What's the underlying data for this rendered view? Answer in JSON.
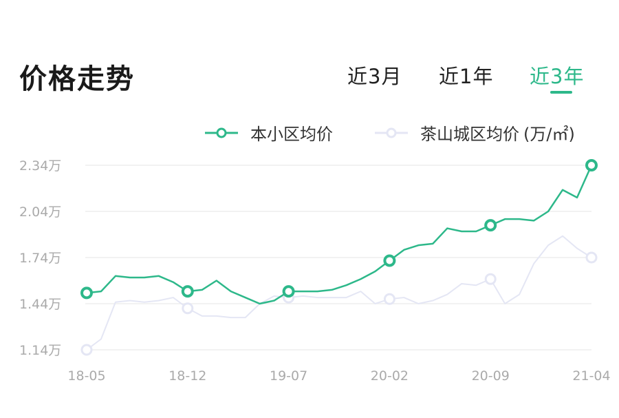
{
  "header": {
    "title": "价格走势"
  },
  "tabs": [
    {
      "label": "近3月",
      "active": false
    },
    {
      "label": "近1年",
      "active": false
    },
    {
      "label": "近3年",
      "active": true
    }
  ],
  "colors": {
    "accent": "#2db88a",
    "secondary": "#e4e6f4",
    "grid": "#eeeeee",
    "axis_text": "#aaaaaa"
  },
  "chart_data": {
    "type": "line",
    "unit": "(万/㎡)",
    "y_ticks": [
      "2.34万",
      "2.04万",
      "1.74万",
      "1.44万",
      "1.14万"
    ],
    "y_tick_values": [
      2.34,
      2.04,
      1.74,
      1.44,
      1.14
    ],
    "ylim": [
      1.14,
      2.34
    ],
    "x_ticks": [
      "18-05",
      "18-12",
      "19-07",
      "20-02",
      "20-09",
      "21-04"
    ],
    "x_tick_indices": [
      0,
      7,
      14,
      21,
      28,
      35
    ],
    "grid": true,
    "legend": "top-right",
    "series": [
      {
        "name": "本小区均价",
        "color": "#2db88a",
        "values": [
          1.51,
          1.52,
          1.62,
          1.61,
          1.61,
          1.62,
          1.58,
          1.52,
          1.53,
          1.59,
          1.52,
          1.48,
          1.44,
          1.46,
          1.52,
          1.52,
          1.52,
          1.53,
          1.56,
          1.6,
          1.65,
          1.72,
          1.79,
          1.82,
          1.83,
          1.93,
          1.91,
          1.91,
          1.95,
          1.99,
          1.99,
          1.98,
          2.04,
          2.18,
          2.13,
          2.34
        ]
      },
      {
        "name": "茶山城区均价",
        "color": "#e4e6f4",
        "values": [
          1.14,
          1.21,
          1.45,
          1.46,
          1.45,
          1.46,
          1.48,
          1.41,
          1.36,
          1.36,
          1.35,
          1.35,
          1.44,
          1.49,
          1.48,
          1.49,
          1.48,
          1.48,
          1.48,
          1.52,
          1.44,
          1.47,
          1.48,
          1.44,
          1.46,
          1.5,
          1.57,
          1.56,
          1.6,
          1.44,
          1.5,
          1.7,
          1.82,
          1.88,
          1.8,
          1.74
        ]
      }
    ],
    "marker_indices": [
      0,
      7,
      14,
      21,
      28,
      35
    ]
  }
}
